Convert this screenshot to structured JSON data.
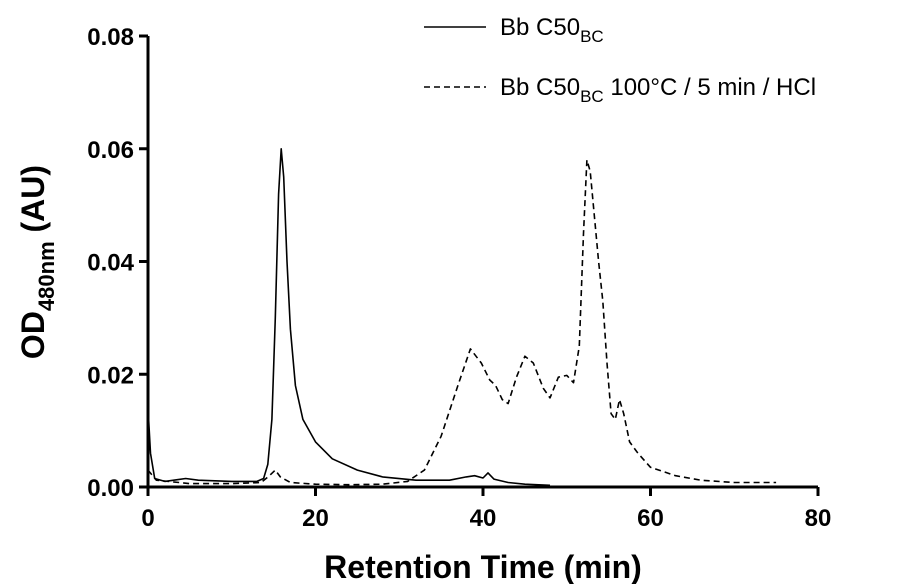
{
  "chart_data": {
    "type": "line",
    "xlabel": "Retention Time (min)",
    "ylabel": {
      "main": "OD",
      "sub": "480nm",
      "unit": " (AU)"
    },
    "xlim": [
      0,
      80
    ],
    "ylim": [
      0,
      0.08
    ],
    "xticks": [
      0,
      20,
      40,
      60,
      80
    ],
    "xtick_labels": [
      "0",
      "20",
      "40",
      "60",
      "80"
    ],
    "yticks": [
      0,
      0.02,
      0.04,
      0.06,
      0.08
    ],
    "ytick_labels": [
      "0.00",
      "0.02",
      "0.04",
      "0.06",
      "0.08"
    ],
    "grid": false,
    "legend_position": "top-right",
    "series": [
      {
        "name": "Bb C50BC",
        "label_parts": {
          "main": "Bb C50",
          "sub": "BC",
          "rest": ""
        },
        "style": "solid",
        "color": "#000000",
        "points": [
          [
            0,
            0.014
          ],
          [
            0.3,
            0.006
          ],
          [
            0.8,
            0.0015
          ],
          [
            2,
            0.001
          ],
          [
            3.5,
            0.0013
          ],
          [
            4.5,
            0.0015
          ],
          [
            6,
            0.0012
          ],
          [
            10,
            0.001
          ],
          [
            13,
            0.001
          ],
          [
            13.8,
            0.0015
          ],
          [
            14.3,
            0.004
          ],
          [
            14.8,
            0.012
          ],
          [
            15.2,
            0.03
          ],
          [
            15.6,
            0.052
          ],
          [
            15.9,
            0.06
          ],
          [
            16.2,
            0.055
          ],
          [
            16.6,
            0.04
          ],
          [
            17,
            0.028
          ],
          [
            17.6,
            0.018
          ],
          [
            18.5,
            0.012
          ],
          [
            20,
            0.008
          ],
          [
            22,
            0.005
          ],
          [
            25,
            0.003
          ],
          [
            28,
            0.0018
          ],
          [
            32,
            0.0012
          ],
          [
            36,
            0.0012
          ],
          [
            38,
            0.0018
          ],
          [
            39,
            0.002
          ],
          [
            40,
            0.0016
          ],
          [
            40.6,
            0.0025
          ],
          [
            41.3,
            0.0014
          ],
          [
            43,
            0.0008
          ],
          [
            45,
            0.0005
          ],
          [
            48,
            0.0003
          ]
        ]
      },
      {
        "name": "Bb C50BC 100°C / 5 min / HCl",
        "label_parts": {
          "main": "Bb C50",
          "sub": "BC",
          "rest": " 100°C / 5 min / HCl"
        },
        "style": "dashed",
        "color": "#000000",
        "points": [
          [
            0,
            0.003
          ],
          [
            1,
            0.0012
          ],
          [
            5,
            0.0006
          ],
          [
            10,
            0.0006
          ],
          [
            13.5,
            0.0008
          ],
          [
            14.5,
            0.002
          ],
          [
            15.2,
            0.003
          ],
          [
            15.8,
            0.0018
          ],
          [
            17,
            0.0008
          ],
          [
            20,
            0.0005
          ],
          [
            24,
            0.0004
          ],
          [
            28,
            0.0005
          ],
          [
            31,
            0.001
          ],
          [
            33,
            0.003
          ],
          [
            35,
            0.009
          ],
          [
            37,
            0.018
          ],
          [
            38.5,
            0.0245
          ],
          [
            39.8,
            0.022
          ],
          [
            40.8,
            0.019
          ],
          [
            41.5,
            0.018
          ],
          [
            42.3,
            0.0155
          ],
          [
            43,
            0.0148
          ],
          [
            44,
            0.0195
          ],
          [
            45,
            0.0232
          ],
          [
            46,
            0.022
          ],
          [
            47.2,
            0.0175
          ],
          [
            48,
            0.0158
          ],
          [
            49,
            0.0195
          ],
          [
            50,
            0.0198
          ],
          [
            50.8,
            0.0185
          ],
          [
            51.5,
            0.025
          ],
          [
            52,
            0.045
          ],
          [
            52.4,
            0.058
          ],
          [
            52.8,
            0.056
          ],
          [
            53.3,
            0.048
          ],
          [
            53.8,
            0.04
          ],
          [
            54.3,
            0.033
          ],
          [
            54.8,
            0.022
          ],
          [
            55.3,
            0.013
          ],
          [
            55.8,
            0.012
          ],
          [
            56.3,
            0.0155
          ],
          [
            56.8,
            0.013
          ],
          [
            57.5,
            0.008
          ],
          [
            58.5,
            0.006
          ],
          [
            60,
            0.0035
          ],
          [
            63,
            0.002
          ],
          [
            66,
            0.0012
          ],
          [
            70,
            0.0008
          ],
          [
            75,
            0.0008
          ]
        ]
      }
    ]
  }
}
